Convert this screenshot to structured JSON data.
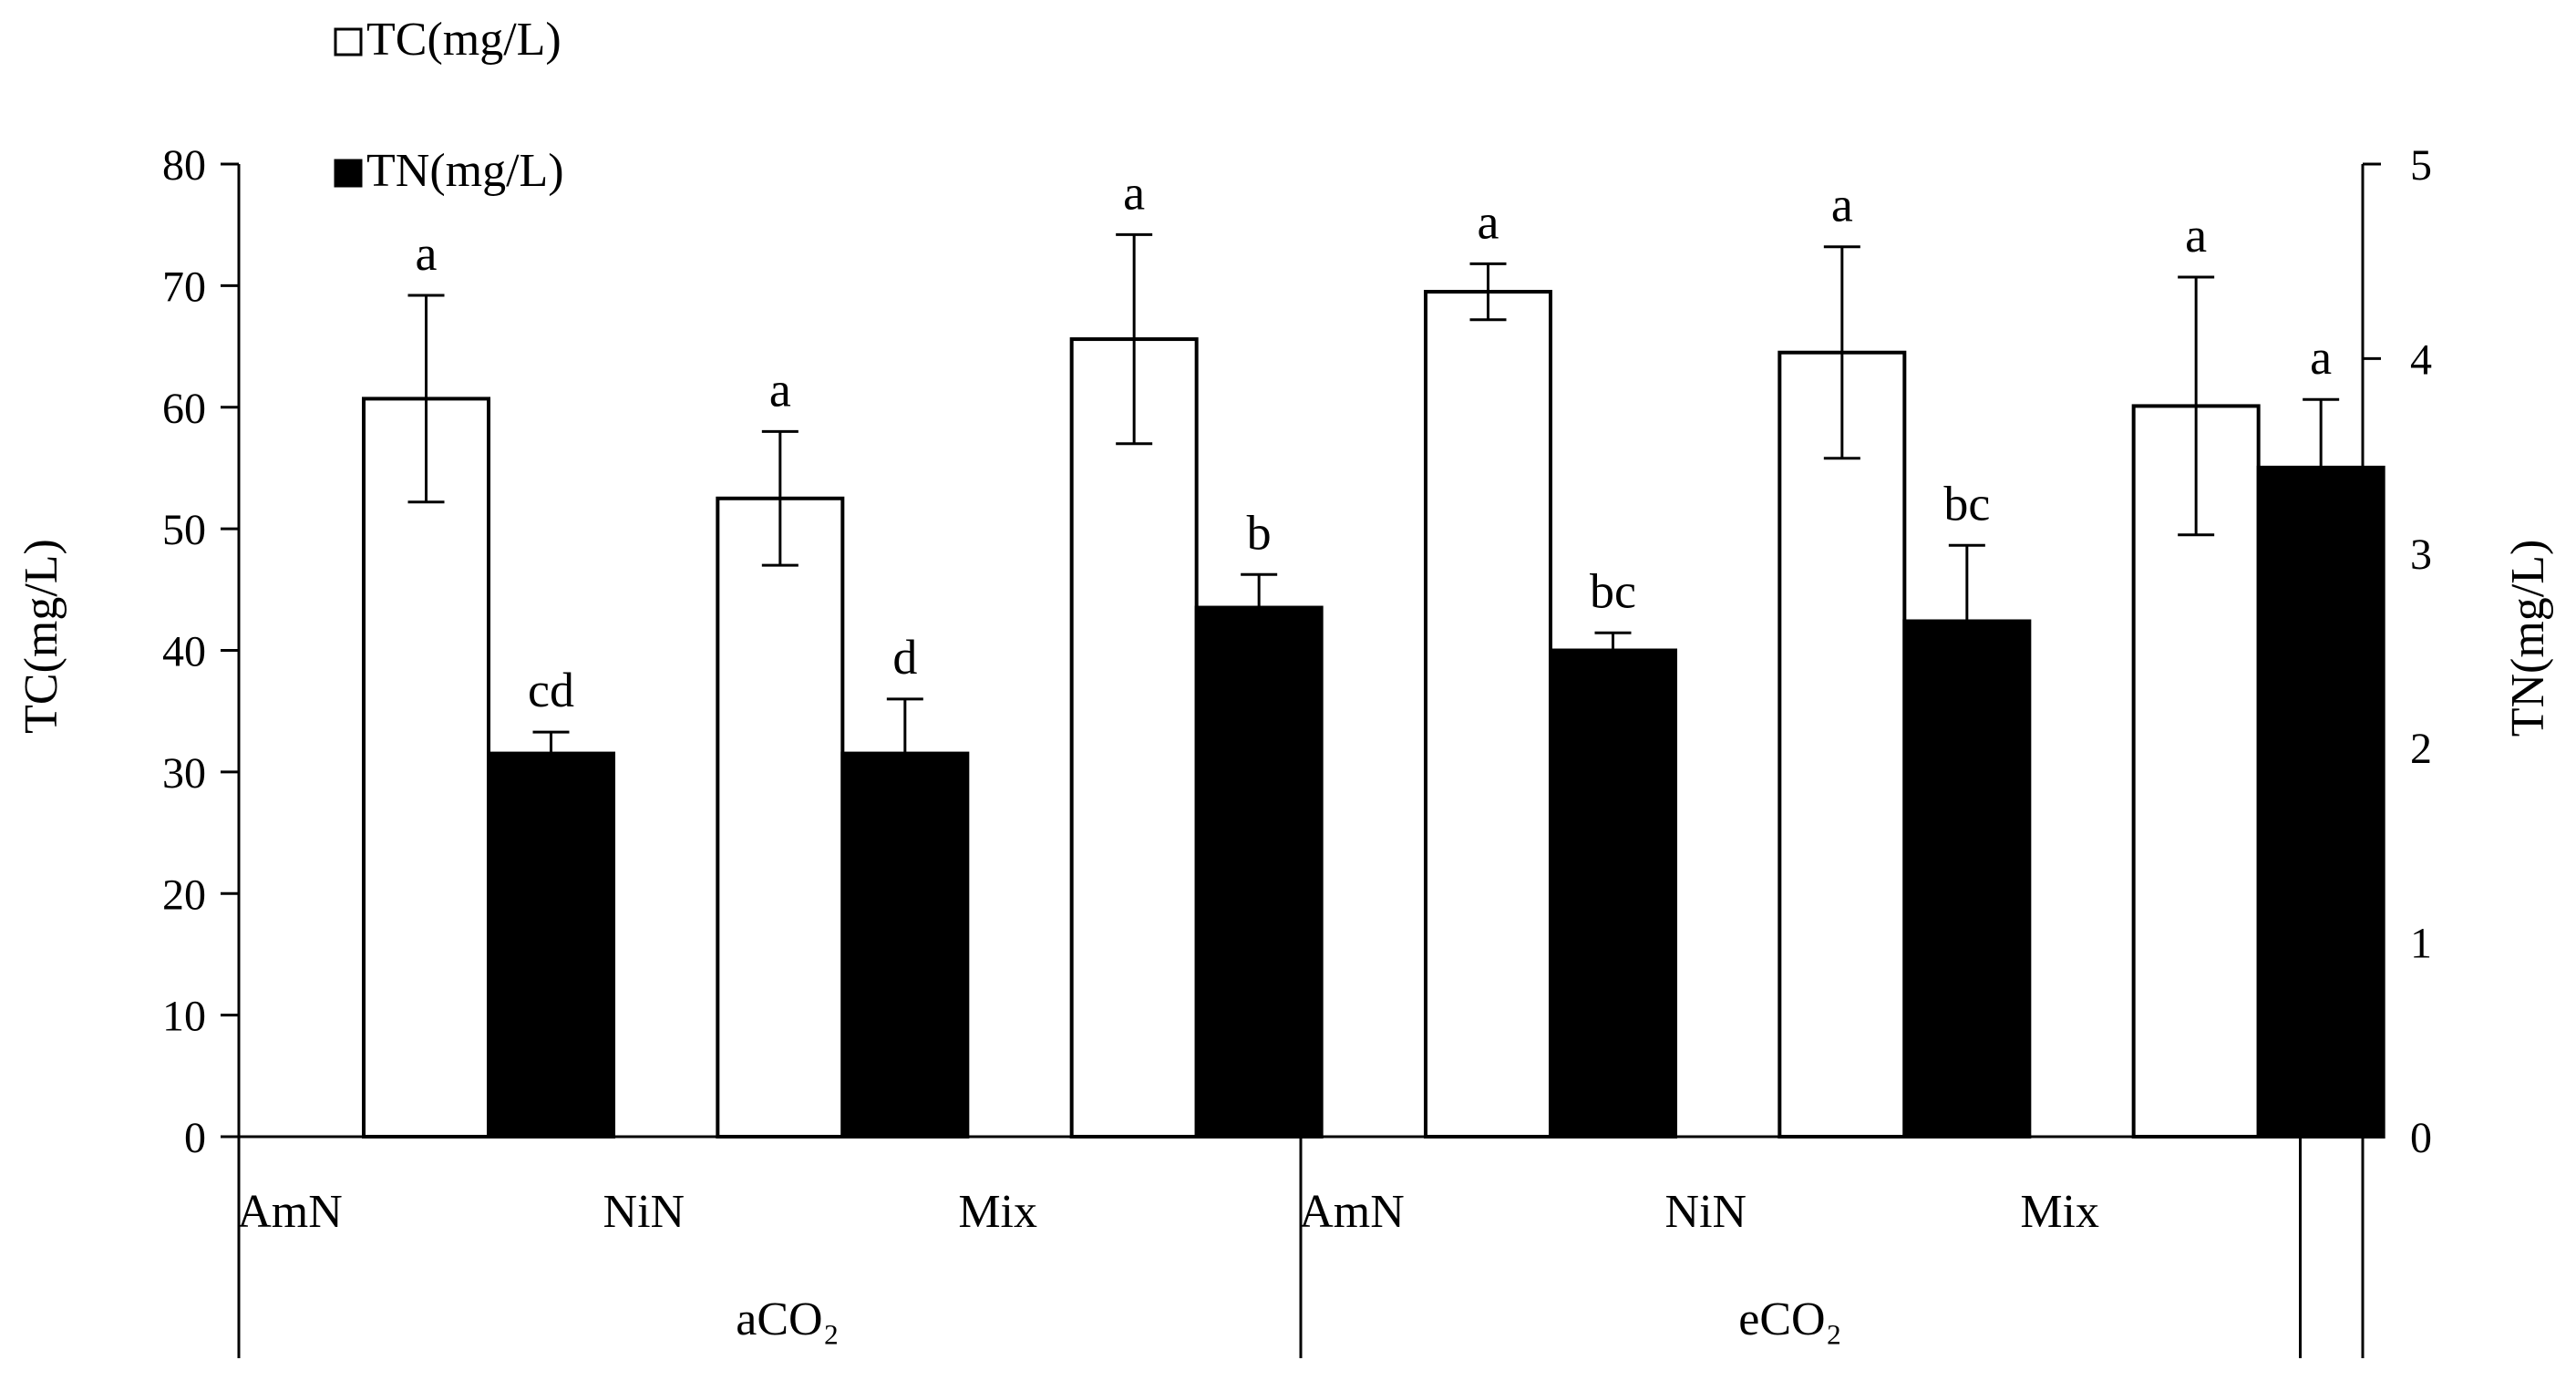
{
  "chart_data": {
    "type": "bar",
    "categories": [
      "AmN",
      "NiN",
      "Mix",
      "AmN",
      "NiN",
      "Mix"
    ],
    "groups": [
      {
        "label": "aCO₂",
        "categories": [
          "AmN",
          "NiN",
          "Mix"
        ]
      },
      {
        "label": "eCO₂",
        "categories": [
          "AmN",
          "NiN",
          "Mix"
        ]
      }
    ],
    "series": [
      {
        "name": "TC(mg/L)",
        "axis": "left",
        "fill": "#ffffff",
        "values": [
          60.7,
          52.5,
          65.6,
          69.5,
          64.5,
          60.1
        ],
        "errors": [
          8.5,
          5.5,
          8.6,
          2.3,
          8.7,
          10.6
        ],
        "letters": [
          "a",
          "a",
          "a",
          "a",
          "a",
          "a"
        ]
      },
      {
        "name": "TN(mg/L)",
        "axis": "right",
        "fill": "#000000",
        "values": [
          1.97,
          1.97,
          2.72,
          2.5,
          2.65,
          3.44
        ],
        "errors": [
          0.11,
          0.28,
          0.17,
          0.09,
          0.39,
          0.35
        ],
        "letters": [
          "cd",
          "d",
          "b",
          "bc",
          "bc",
          "a"
        ]
      }
    ],
    "ylabel": "TC(mg/L)",
    "ylabel_right": "TN(mg/L)",
    "ylim": [
      0,
      80
    ],
    "ylim_right": [
      0,
      5
    ],
    "yticks": [
      "0",
      "10",
      "20",
      "30",
      "40",
      "50",
      "60",
      "70",
      "80"
    ],
    "yticks_right": [
      "0",
      "1",
      "2",
      "3",
      "4",
      "5"
    ],
    "legend_position": "top-left",
    "grid": false,
    "colors": {
      "axis": "#000000",
      "tc_bar": "#ffffff",
      "tn_bar": "#000000"
    }
  }
}
